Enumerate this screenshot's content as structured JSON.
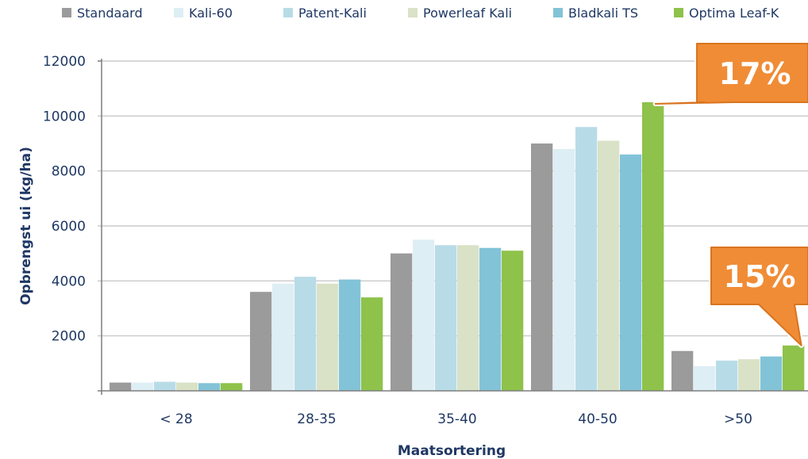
{
  "chart_data": {
    "type": "bar",
    "title": "",
    "xlabel": "Maatsortering",
    "ylabel": "Opbrengst ui (kg/ha)",
    "ylim": [
      0,
      12000
    ],
    "yticks": [
      "2000",
      "4000",
      "6000",
      "8000",
      "10000",
      "12000"
    ],
    "grid": true,
    "legend_position": "top",
    "categories": [
      "< 28",
      "28-35",
      "35-40",
      "40-50",
      ">50"
    ],
    "series": [
      {
        "name": "Standaard",
        "color": "#9b9b9b",
        "values": [
          300,
          3600,
          5000,
          9000,
          1450
        ]
      },
      {
        "name": "Kali-60",
        "color": "#deeef5",
        "values": [
          300,
          3900,
          5500,
          8800,
          900
        ]
      },
      {
        "name": "Patent-Kali",
        "color": "#b8dce7",
        "values": [
          330,
          4150,
          5300,
          9600,
          1100
        ]
      },
      {
        "name": "Powerleaf Kali",
        "color": "#d9e2c6",
        "values": [
          300,
          3900,
          5300,
          9100,
          1150
        ]
      },
      {
        "name": "Bladkali TS",
        "color": "#82c3d8",
        "values": [
          280,
          4050,
          5200,
          8600,
          1250
        ]
      },
      {
        "name": "Optima Leaf-K",
        "color": "#8ec24a",
        "values": [
          280,
          3400,
          5100,
          10500,
          1650
        ]
      }
    ],
    "annotations": [
      {
        "text": "17%",
        "category": "40-50",
        "series": "Optima Leaf-K",
        "color": "#f08c36"
      },
      {
        "text": "15%",
        "category": ">50",
        "series": "Optima Leaf-K",
        "color": "#f08c36"
      }
    ]
  }
}
